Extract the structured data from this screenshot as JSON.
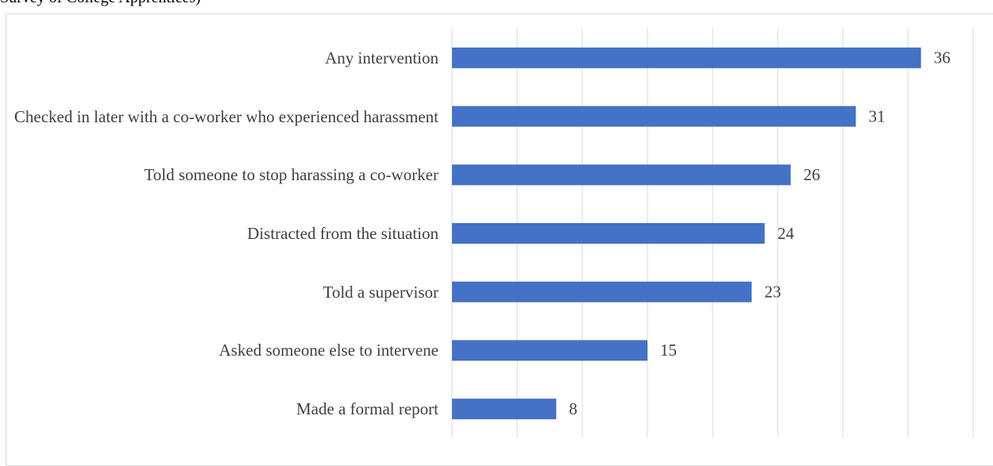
{
  "chart_data": {
    "type": "bar",
    "orientation": "horizontal",
    "subtitle": "Survey of College Apprentices)",
    "categories": [
      "Any intervention",
      "Checked in later with a co-worker who experienced harassment",
      "Told someone to stop harassing a co-worker",
      "Distracted from the situation",
      "Told a supervisor",
      "Asked someone else to intervene",
      "Made a formal report"
    ],
    "values": [
      36,
      31,
      26,
      24,
      23,
      15,
      8
    ],
    "color": "#4472c4",
    "xlim": [
      0,
      40
    ],
    "xticks": [
      0,
      5,
      10,
      15,
      20,
      25,
      30,
      35,
      40
    ],
    "grid": true
  }
}
